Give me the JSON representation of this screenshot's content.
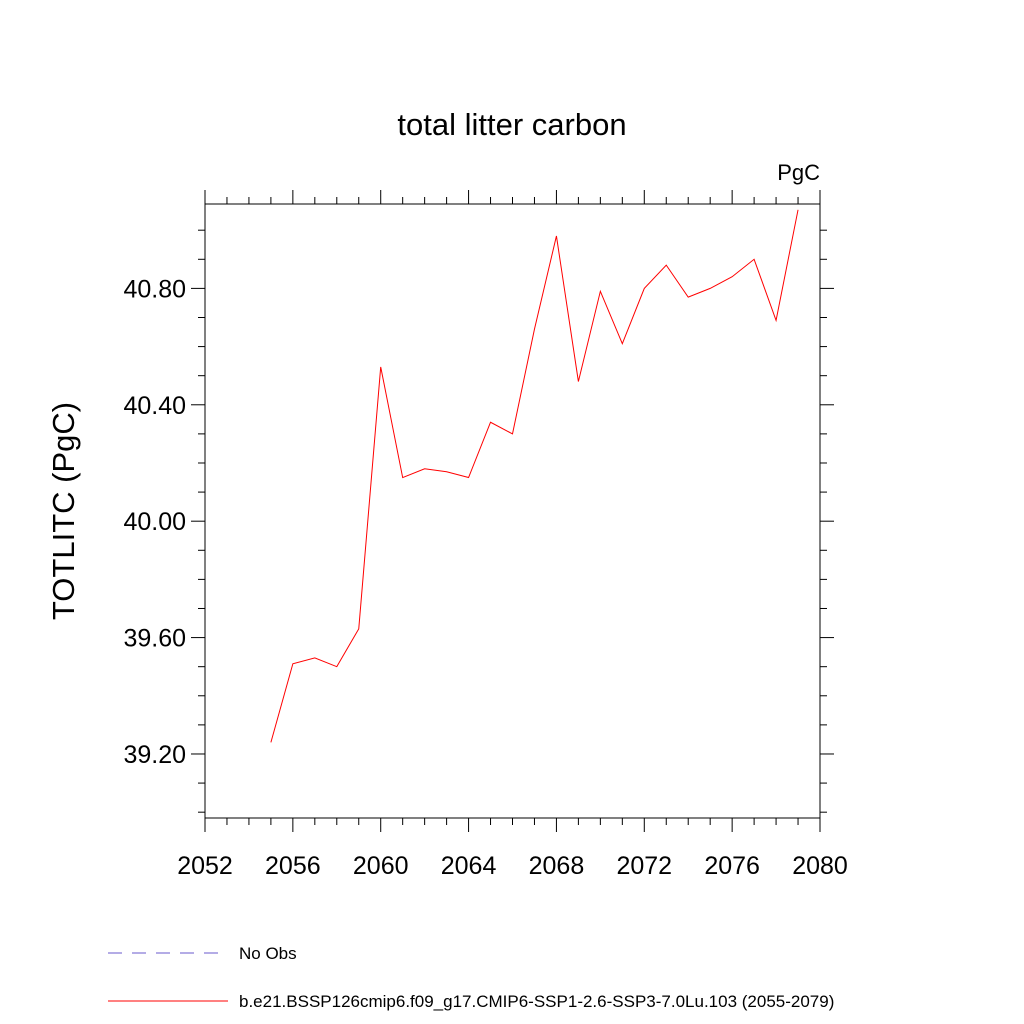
{
  "chart_data": {
    "type": "line",
    "title": "total litter carbon",
    "unit_label": "PgC",
    "xlabel": "",
    "ylabel": "TOTLITC  (PgC)",
    "xlim": [
      2052,
      2080
    ],
    "ylim": [
      38.98,
      41.09
    ],
    "x_ticks": [
      2052,
      2056,
      2060,
      2064,
      2068,
      2072,
      2076,
      2080
    ],
    "y_ticks": [
      39.2,
      39.6,
      40.0,
      40.4,
      40.8
    ],
    "y_tick_labels": [
      "39.20",
      "39.60",
      "40.00",
      "40.40",
      "40.80"
    ],
    "x_tick_labels": [
      "2052",
      "2056",
      "2060",
      "2064",
      "2068",
      "2072",
      "2076",
      "2080"
    ],
    "grid": false,
    "legend_position": "bottom",
    "series": [
      {
        "name": "b.e21.BSSP126cmip6.f09_g17.CMIP6-SSP1-2.6-SSP3-7.0Lu.103 (2055-2079)",
        "color": "#ff0000",
        "style": "solid",
        "x": [
          2055,
          2056,
          2057,
          2058,
          2059,
          2060,
          2061,
          2062,
          2063,
          2064,
          2065,
          2066,
          2067,
          2068,
          2069,
          2070,
          2071,
          2072,
          2073,
          2074,
          2075,
          2076,
          2077,
          2078,
          2079
        ],
        "values": [
          39.24,
          39.51,
          39.53,
          39.5,
          39.63,
          40.53,
          40.15,
          40.18,
          40.17,
          40.15,
          40.34,
          40.3,
          40.66,
          40.98,
          40.48,
          40.79,
          40.61,
          40.8,
          40.88,
          40.77,
          40.8,
          40.84,
          40.9,
          40.69,
          41.07
        ]
      },
      {
        "name": "No Obs",
        "color": "#6a5acd",
        "style": "dashed",
        "x": [],
        "values": []
      }
    ]
  }
}
